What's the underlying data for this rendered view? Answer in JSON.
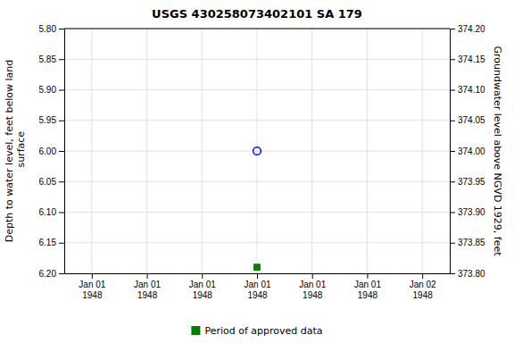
{
  "chart_data": {
    "type": "scatter",
    "title": "USGS 430258073402101 SA 179",
    "categories": [
      "Jan 01\n1948",
      "Jan 01\n1948",
      "Jan 01\n1948",
      "Jan 01\n1948",
      "Jan 01\n1948",
      "Jan 01\n1948",
      "Jan 02\n1948"
    ],
    "series": [
      {
        "color": "#0000FF",
        "marker": "open-circle",
        "values": [
          null,
          null,
          null,
          6.0,
          null,
          null,
          null
        ]
      },
      {
        "name": "Period of approved data",
        "color": "#008000",
        "marker": "square",
        "values": [
          null,
          null,
          null,
          6.19,
          null,
          null,
          null
        ]
      }
    ],
    "ylabel": "Depth to water level, feet below land\n surface",
    "y2label": "Groundwater level above NGVD 1929, feet",
    "ylim": [
      6.2,
      5.8
    ],
    "yticks": [
      {
        "value": 5.8,
        "label": "5.80"
      },
      5.85,
      {
        "value": 5.9,
        "label": "5.90"
      },
      5.95,
      {
        "value": 6.0,
        "label": "6.00"
      },
      6.05,
      {
        "value": 6.1,
        "label": "6.10"
      },
      6.15,
      {
        "value": 6.2,
        "label": "6.20"
      }
    ],
    "y2lim": [
      373.8,
      374.2
    ],
    "y2ticks": [
      {
        "value": 374.2,
        "label": "374.20"
      },
      374.15,
      {
        "value": 374.1,
        "label": "374.10"
      },
      374.05,
      {
        "value": 374.0,
        "label": "374.00"
      },
      373.95,
      {
        "value": 373.9,
        "label": "373.90"
      },
      373.85,
      {
        "value": 373.8,
        "label": "373.80"
      }
    ],
    "grid": true,
    "legend": "bottom"
  }
}
